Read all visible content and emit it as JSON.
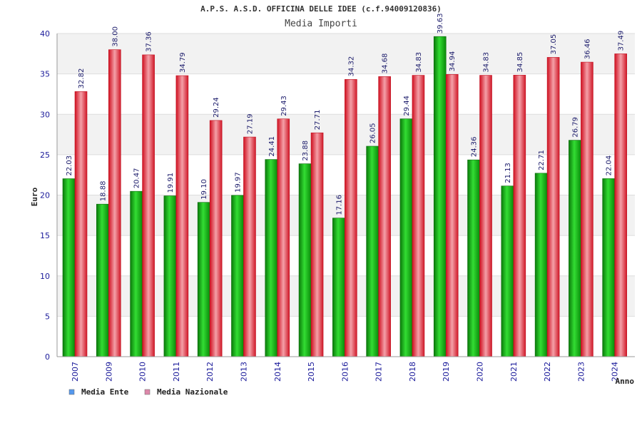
{
  "chart_data": {
    "type": "bar",
    "title": "A.P.S. A.S.D. OFFICINA DELLE IDEE (c.f.94009120836)",
    "subtitle": "Media Importi",
    "xlabel": "Anno",
    "ylabel": "Euro",
    "ylim": [
      0,
      40
    ],
    "yticks": [
      0,
      5,
      10,
      15,
      20,
      25,
      30,
      35,
      40
    ],
    "grid": true,
    "legend_position": "bottom-left",
    "categories": [
      "2007",
      "2009",
      "2010",
      "2011",
      "2012",
      "2013",
      "2014",
      "2015",
      "2016",
      "2017",
      "2018",
      "2019",
      "2020",
      "2021",
      "2022",
      "2023",
      "2024"
    ],
    "series": [
      {
        "name": "Media Ente",
        "color": "#10a810",
        "legend_color": "#5599ee",
        "values": [
          22.03,
          18.88,
          20.47,
          19.91,
          19.1,
          19.97,
          24.41,
          23.88,
          17.16,
          26.05,
          29.44,
          39.63,
          24.36,
          21.13,
          22.71,
          26.79,
          22.04
        ],
        "labels": [
          "22.03",
          "18.88",
          "20.47",
          "19.91",
          "19.10",
          "19.97",
          "24.41",
          "23.88",
          "17.16",
          "26.05",
          "29.44",
          "39.63",
          "24.36",
          "21.13",
          "22.71",
          "26.79",
          "22.04"
        ]
      },
      {
        "name": "Media Nazionale",
        "color": "#e8283a",
        "legend_color": "#dd88aa",
        "values": [
          32.82,
          38.0,
          37.36,
          34.79,
          29.24,
          27.19,
          29.43,
          27.71,
          34.32,
          34.68,
          34.83,
          34.94,
          34.83,
          34.85,
          37.05,
          36.46,
          37.49
        ],
        "labels": [
          "32.82",
          "38.00",
          "37.36",
          "34.79",
          "29.24",
          "27.19",
          "29.43",
          "27.71",
          "34.32",
          "34.68",
          "34.83",
          "34.94",
          "34.83",
          "34.85",
          "37.05",
          "36.46",
          "37.49"
        ]
      }
    ]
  }
}
